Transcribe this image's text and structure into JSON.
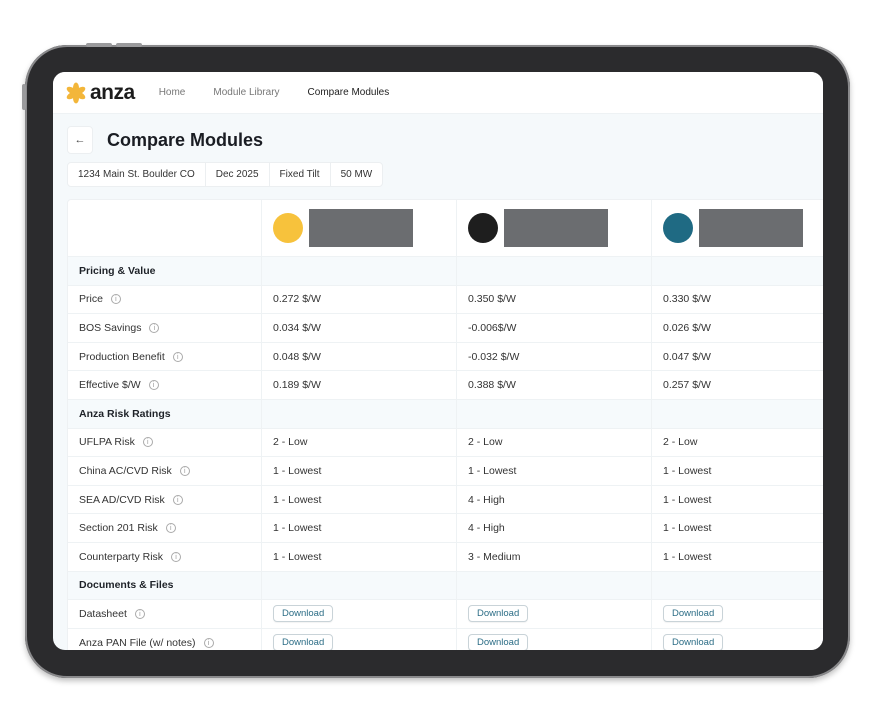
{
  "nav": {
    "brand": "anza",
    "items": [
      "Home",
      "Module Library",
      "Compare Modules"
    ],
    "active": 2
  },
  "page": {
    "title": "Compare Modules",
    "chips": [
      "1234 Main St. Boulder CO",
      "Dec 2025",
      "Fixed Tilt",
      "50 MW"
    ]
  },
  "modules": [
    {
      "color": "#f7c23c"
    },
    {
      "color": "#1e1e1e"
    },
    {
      "color": "#1f6a83"
    }
  ],
  "sections": [
    {
      "title": "Pricing & Value",
      "rows": [
        {
          "label": "Price",
          "values": [
            "0.272 $/W",
            "0.350 $/W",
            "0.330 $/W"
          ]
        },
        {
          "label": "BOS Savings",
          "values": [
            "0.034 $/W",
            "-0.006$/W",
            "0.026 $/W"
          ]
        },
        {
          "label": "Production Benefit",
          "values": [
            "0.048 $/W",
            "-0.032 $/W",
            "0.047 $/W"
          ]
        },
        {
          "label": "Effective $/W",
          "values": [
            "0.189 $/W",
            "0.388 $/W",
            "0.257 $/W"
          ]
        }
      ]
    },
    {
      "title": "Anza Risk Ratings",
      "rows": [
        {
          "label": "UFLPA Risk",
          "values": [
            "2 - Low",
            "2 - Low",
            "2 - Low"
          ]
        },
        {
          "label": "China AC/CVD Risk",
          "values": [
            "1 - Lowest",
            "1 - Lowest",
            "1 - Lowest"
          ]
        },
        {
          "label": "SEA AD/CVD Risk",
          "values": [
            "1 - Lowest",
            "4 - High",
            "1 - Lowest"
          ]
        },
        {
          "label": "Section 201 Risk",
          "values": [
            "1 - Lowest",
            "4 - High",
            "1 - Lowest"
          ]
        },
        {
          "label": "Counterparty Risk",
          "values": [
            "1 - Lowest",
            "3 - Medium",
            "1 - Lowest"
          ]
        }
      ]
    },
    {
      "title": "Documents & Files",
      "rows": [
        {
          "label": "Datasheet",
          "values": [
            "Download",
            "Download",
            "Download"
          ],
          "buttons": true
        },
        {
          "label": "Anza PAN File (w/ notes)",
          "values": [
            "Download",
            "Download",
            "Download"
          ],
          "buttons": true
        }
      ]
    }
  ]
}
